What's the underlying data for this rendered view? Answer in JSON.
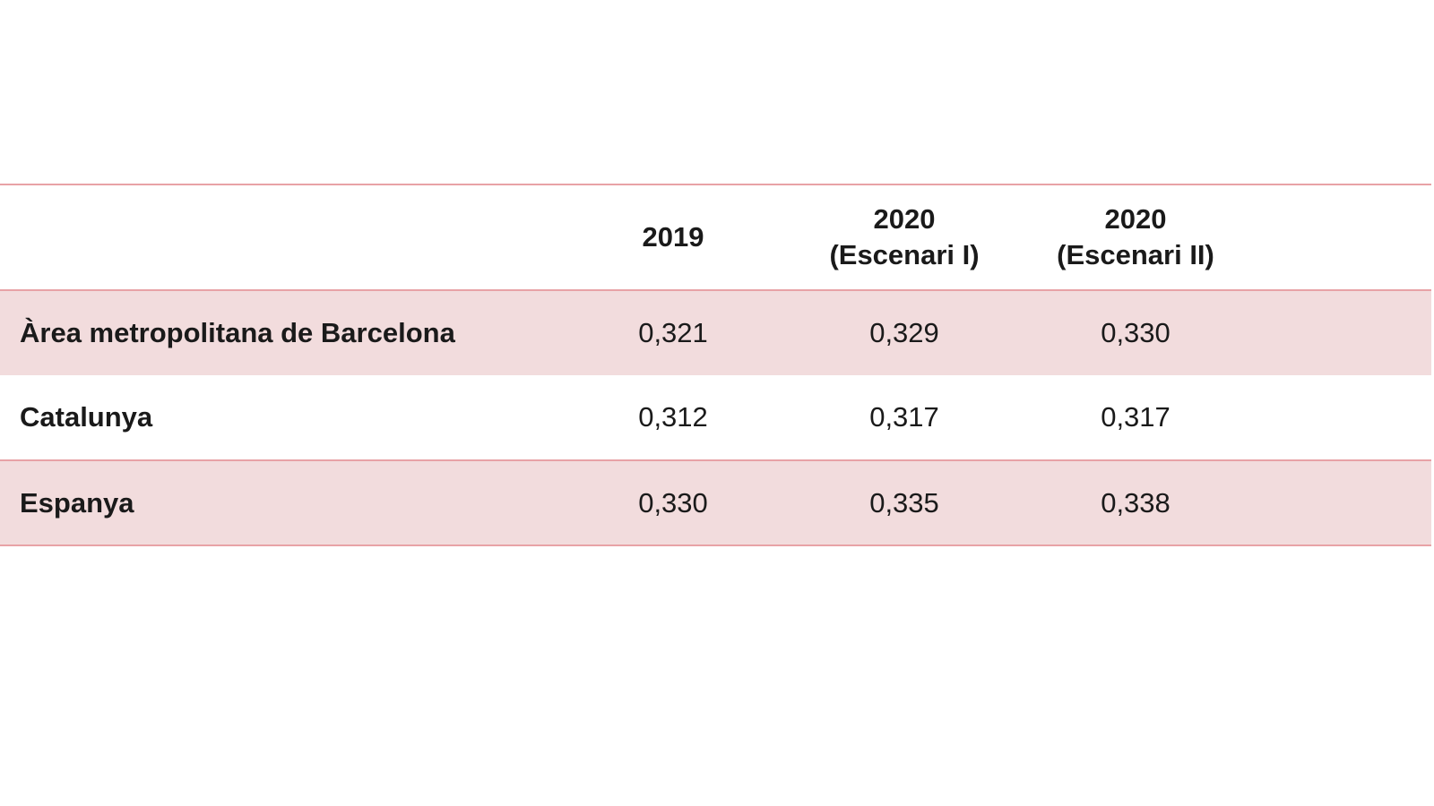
{
  "chart_data": {
    "type": "table",
    "columns": [
      {
        "line1": "",
        "line2": ""
      },
      {
        "line1": "2019",
        "line2": ""
      },
      {
        "line1": "2020",
        "line2": "(Escenari I)"
      },
      {
        "line1": "2020",
        "line2": "(Escenari II)"
      }
    ],
    "rows": [
      {
        "label": "Àrea metropolitana de Barcelona",
        "values": [
          "0,321",
          "0,329",
          "0,330"
        ]
      },
      {
        "label": "Catalunya",
        "values": [
          "0,312",
          "0,317",
          "0,317"
        ]
      },
      {
        "label": "Espanya",
        "values": [
          "0,330",
          "0,335",
          "0,338"
        ]
      }
    ]
  },
  "colors": {
    "row_shade": "#f2dcdd",
    "rule": "#e8a2a6"
  }
}
